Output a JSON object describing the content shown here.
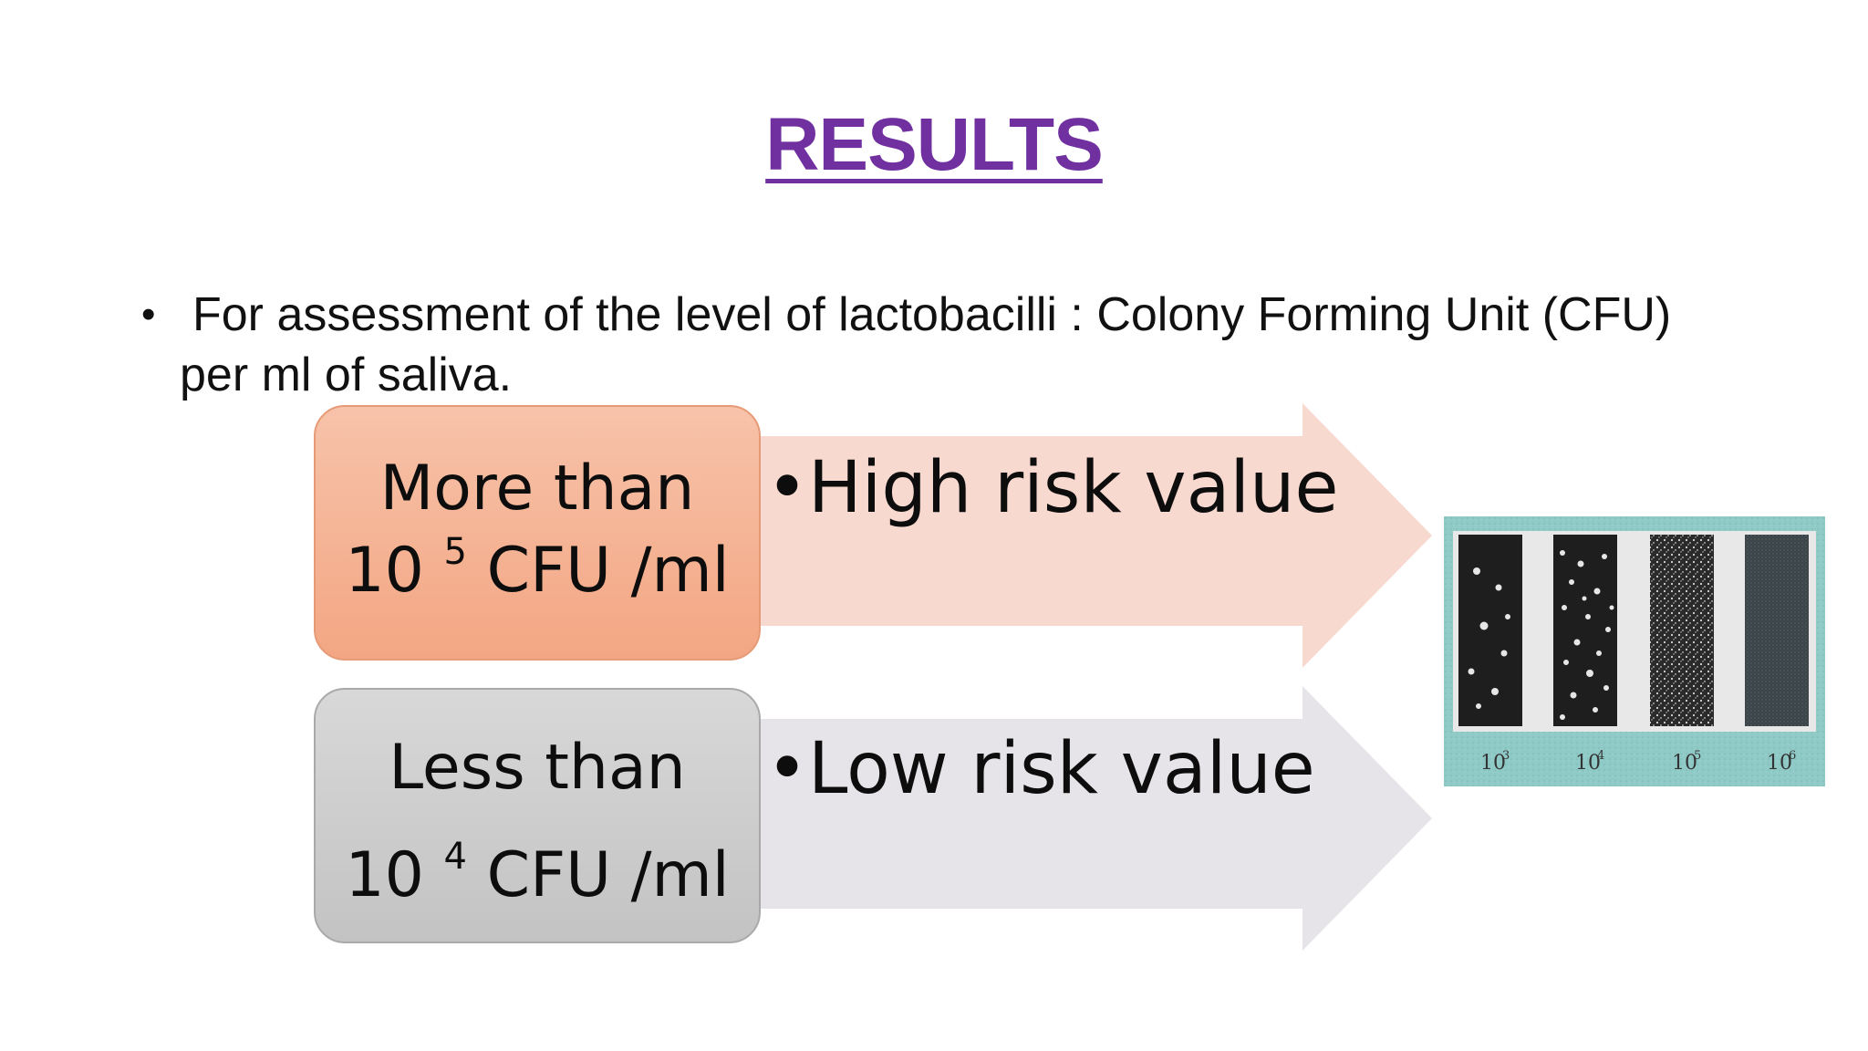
{
  "slide": {
    "title": "RESULTS",
    "bullet": {
      "line1": "For assessment of the level of lactobacilli : Colony Forming Unit (CFU)",
      "line2": "per ml of saliva."
    },
    "rows": [
      {
        "box_line1": "More than",
        "box_base": "10",
        "box_exponent": "5",
        "box_unit": "CFU /ml",
        "arrow_label": "•High risk value",
        "box_color": "#f4b093",
        "arrow_color": "#f8d9d0"
      },
      {
        "box_line1": "Less than",
        "box_base": "10",
        "box_exponent": "4",
        "box_unit": "CFU /ml",
        "arrow_label": "•Low risk value",
        "box_color": "#cacaca",
        "arrow_color": "#e6e4e8"
      }
    ],
    "plate_image": {
      "labels": [
        "10",
        "10",
        "10",
        "10"
      ],
      "exponents": [
        "3",
        "4",
        "5",
        "6"
      ],
      "frame_color": "#88c9c6"
    },
    "title_color": "#7030a0"
  }
}
